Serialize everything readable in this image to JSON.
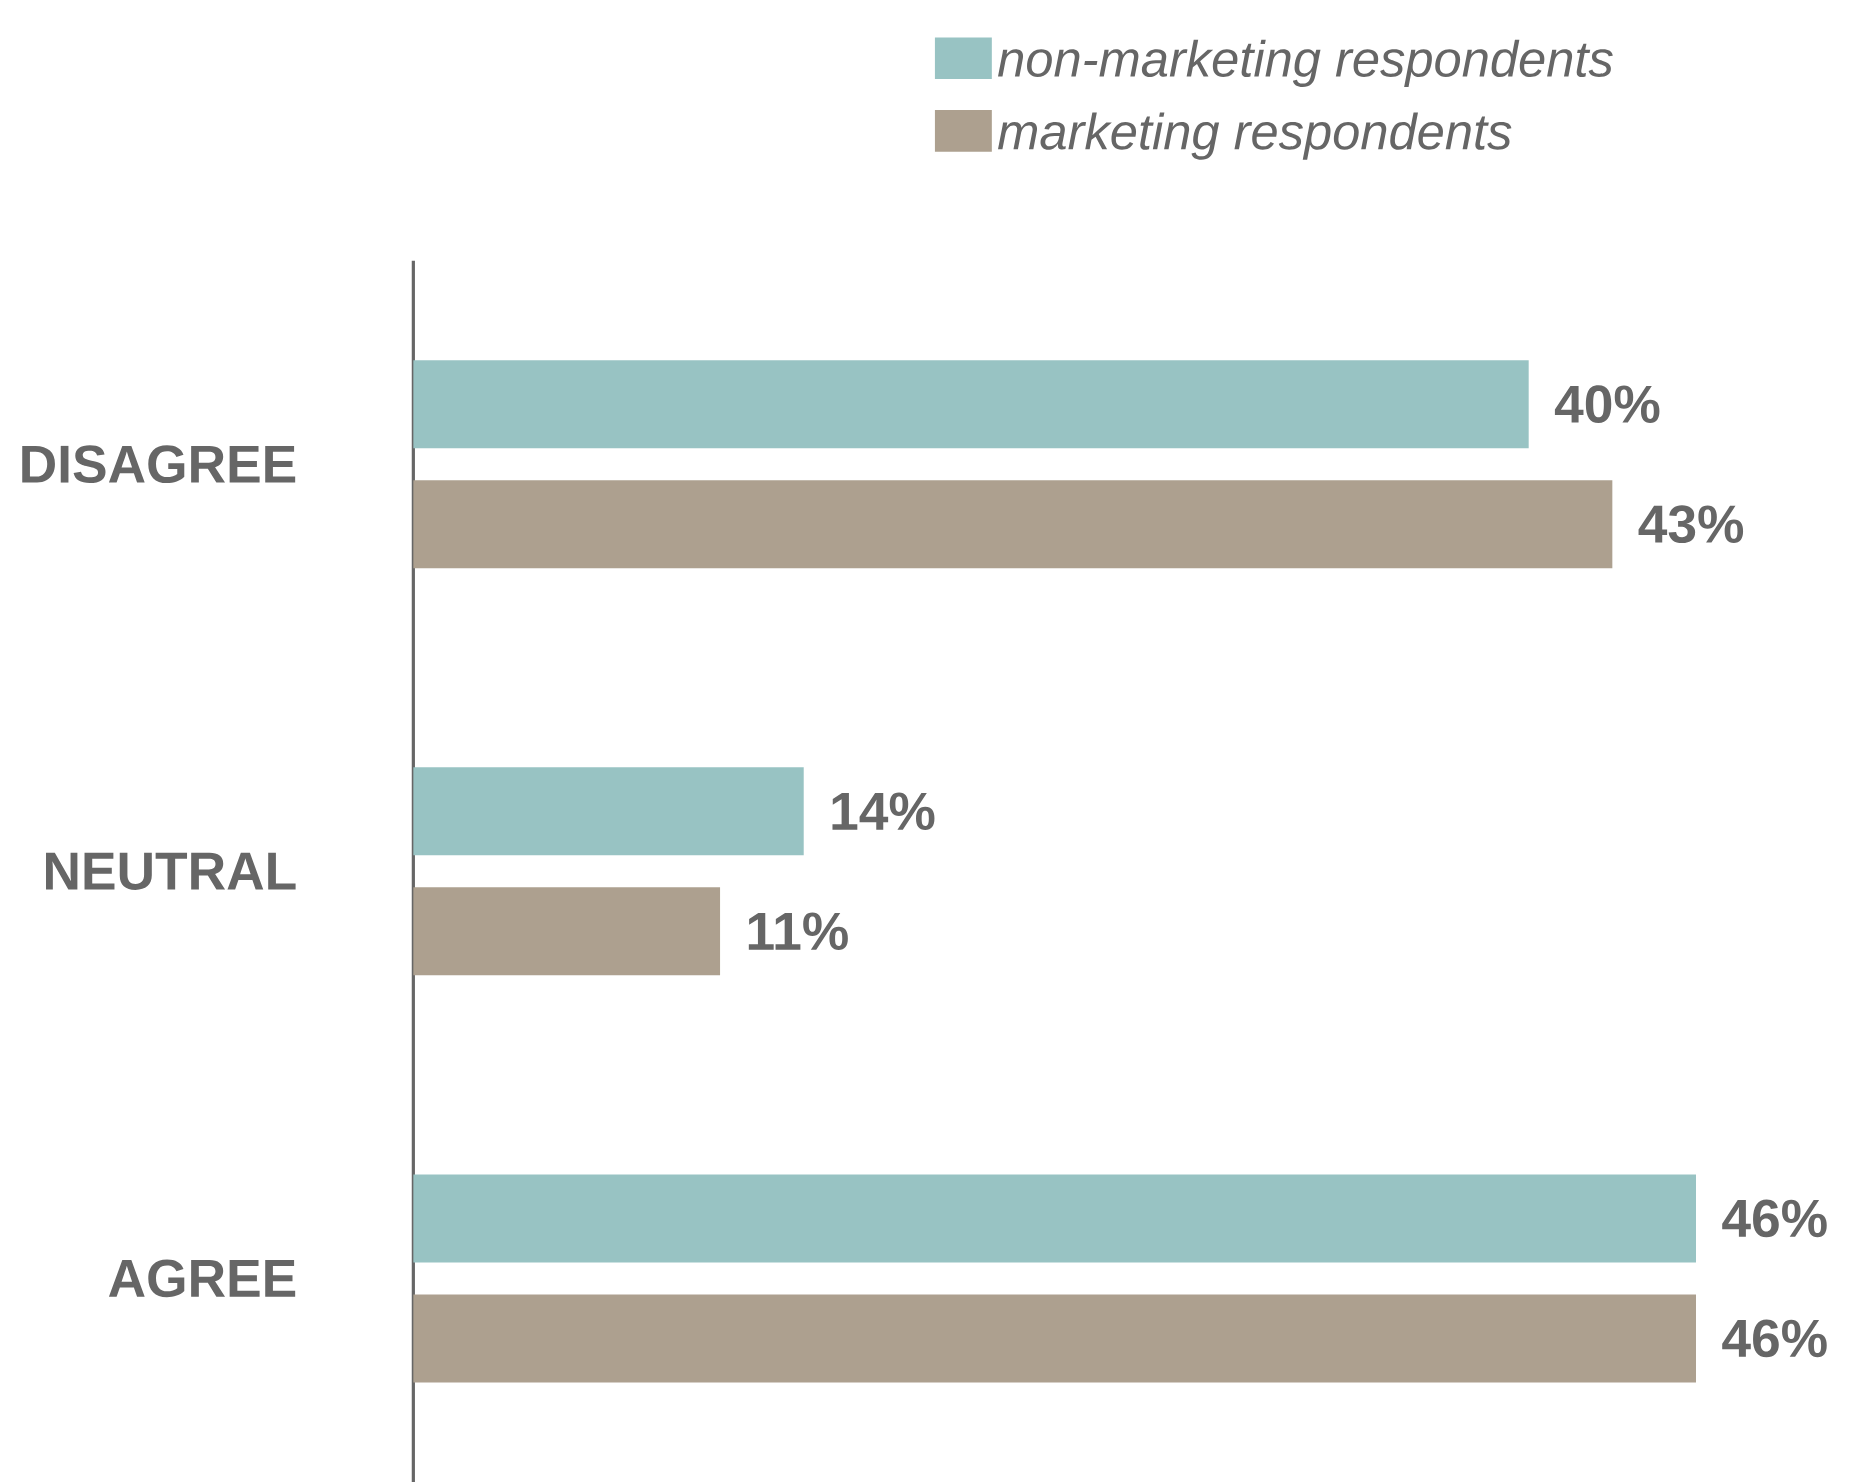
{
  "chart_data": {
    "type": "bar",
    "orientation": "horizontal",
    "legend": "top right",
    "categories": [
      "DISAGREE",
      "NEUTRAL",
      "AGREE"
    ],
    "series": [
      {
        "name": "non-marketing respondents",
        "color": "#98c3c3",
        "values": [
          40,
          14,
          46
        ],
        "value_labels": [
          "40%",
          "14%",
          "46%"
        ]
      },
      {
        "name": "marketing respondents",
        "color": "#ada08f",
        "values": [
          43,
          11,
          46
        ],
        "value_labels": [
          "43%",
          "11%",
          "46%"
        ]
      }
    ]
  }
}
